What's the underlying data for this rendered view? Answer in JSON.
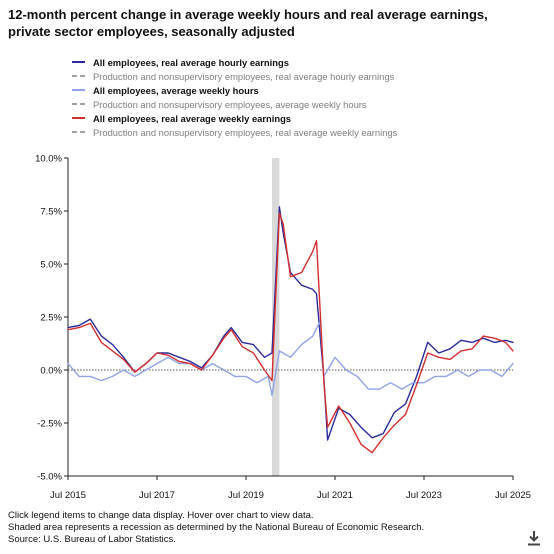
{
  "title": "12-month percent change in average weekly hours and real average earnings, private sector employees, seasonally adjusted",
  "legend": [
    {
      "label": "All employees, real average hourly earnings",
      "color": "#2b2b9b",
      "style": "solid",
      "emphasis": true
    },
    {
      "label": "Production and nonsupervisory employees, real average hourly earnings",
      "color": "#9e9e9e",
      "style": "dashed",
      "emphasis": false
    },
    {
      "label": "All employees, average weekly hours",
      "color": "#8fa3e6",
      "style": "solid",
      "emphasis": true
    },
    {
      "label": "Production and nonsupervisory employees, average weekly hours",
      "color": "#9e9e9e",
      "style": "dashed",
      "emphasis": false
    },
    {
      "label": "All employees, real average weekly earnings",
      "color": "#d32f2f",
      "style": "solid",
      "emphasis": true
    },
    {
      "label": "Production and nonsupervisory employees, real average weekly earnings",
      "color": "#9e9e9e",
      "style": "dashed",
      "emphasis": false
    }
  ],
  "footer": {
    "line1": "Click legend items to change data display. Hover over chart to view data.",
    "line2": "Shaded area represents a recession as determined by the National Bureau of Economic Research.",
    "line3": "Source: U.S. Bureau of Labor Statistics."
  },
  "download_icon": "download-icon",
  "chart_data": {
    "type": "line",
    "x_tick_labels": [
      "Jul 2015",
      "Jul 2017",
      "Jul 2019",
      "Jul 2021",
      "Jul 2023",
      "Jul 2025"
    ],
    "y_tick_labels": [
      "10.0%",
      "7.5%",
      "5.0%",
      "2.5%",
      "0.0%",
      "-2.5%",
      "-5.0%"
    ],
    "xlim": [
      "2015-07",
      "2025-07"
    ],
    "ylim": [
      -5.0,
      10.0
    ],
    "grid": false,
    "zero_line": "dotted",
    "recession_shading": {
      "start": "2020-02",
      "end": "2020-04",
      "color": "#d9d9d9"
    },
    "series": [
      {
        "name": "All employees, real average hourly earnings",
        "color": "#2b2b9b",
        "points": [
          [
            "2015-07",
            2.0
          ],
          [
            "2015-10",
            2.1
          ],
          [
            "2016-01",
            2.4
          ],
          [
            "2016-04",
            1.6
          ],
          [
            "2016-07",
            1.2
          ],
          [
            "2016-10",
            0.6
          ],
          [
            "2017-01",
            -0.1
          ],
          [
            "2017-04",
            0.3
          ],
          [
            "2017-07",
            0.8
          ],
          [
            "2017-10",
            0.8
          ],
          [
            "2018-01",
            0.6
          ],
          [
            "2018-04",
            0.4
          ],
          [
            "2018-07",
            0.1
          ],
          [
            "2018-10",
            0.7
          ],
          [
            "2019-01",
            1.6
          ],
          [
            "2019-03",
            2.0
          ],
          [
            "2019-06",
            1.3
          ],
          [
            "2019-09",
            1.2
          ],
          [
            "2019-12",
            0.6
          ],
          [
            "2020-02",
            0.8
          ],
          [
            "2020-04",
            7.7
          ],
          [
            "2020-05",
            6.5
          ],
          [
            "2020-07",
            4.6
          ],
          [
            "2020-10",
            4.0
          ],
          [
            "2021-01",
            3.8
          ],
          [
            "2021-02",
            3.6
          ],
          [
            "2021-04",
            -0.4
          ],
          [
            "2021-05",
            -3.3
          ],
          [
            "2021-08",
            -1.8
          ],
          [
            "2021-11",
            -2.1
          ],
          [
            "2022-02",
            -2.7
          ],
          [
            "2022-05",
            -3.2
          ],
          [
            "2022-08",
            -3.0
          ],
          [
            "2022-11",
            -2.0
          ],
          [
            "2023-02",
            -1.6
          ],
          [
            "2023-05",
            -0.3
          ],
          [
            "2023-08",
            1.3
          ],
          [
            "2023-11",
            0.8
          ],
          [
            "2024-02",
            1.0
          ],
          [
            "2024-05",
            1.4
          ],
          [
            "2024-08",
            1.3
          ],
          [
            "2024-11",
            1.5
          ],
          [
            "2025-02",
            1.3
          ],
          [
            "2025-05",
            1.4
          ],
          [
            "2025-07",
            1.3
          ]
        ]
      },
      {
        "name": "Production and nonsupervisory employees, real average hourly earnings",
        "color": "#9e9e9e",
        "dashed": true,
        "hidden": true,
        "points": []
      },
      {
        "name": "All employees, average weekly hours",
        "color": "#8fa3e6",
        "points": [
          [
            "2015-07",
            0.3
          ],
          [
            "2015-10",
            -0.3
          ],
          [
            "2016-01",
            -0.3
          ],
          [
            "2016-04",
            -0.5
          ],
          [
            "2016-07",
            -0.3
          ],
          [
            "2016-10",
            0.0
          ],
          [
            "2017-01",
            -0.3
          ],
          [
            "2017-04",
            0.0
          ],
          [
            "2017-07",
            0.3
          ],
          [
            "2017-10",
            0.6
          ],
          [
            "2018-01",
            0.3
          ],
          [
            "2018-04",
            0.3
          ],
          [
            "2018-07",
            0.0
          ],
          [
            "2018-10",
            0.3
          ],
          [
            "2019-01",
            0.0
          ],
          [
            "2019-04",
            -0.3
          ],
          [
            "2019-07",
            -0.3
          ],
          [
            "2019-10",
            -0.6
          ],
          [
            "2020-01",
            -0.3
          ],
          [
            "2020-02",
            -1.2
          ],
          [
            "2020-04",
            0.9
          ],
          [
            "2020-07",
            0.6
          ],
          [
            "2020-10",
            1.2
          ],
          [
            "2021-01",
            1.6
          ],
          [
            "2021-03",
            2.3
          ],
          [
            "2021-04",
            -0.3
          ],
          [
            "2021-07",
            0.6
          ],
          [
            "2021-10",
            0.0
          ],
          [
            "2022-01",
            -0.3
          ],
          [
            "2022-04",
            -0.9
          ],
          [
            "2022-07",
            -0.9
          ],
          [
            "2022-10",
            -0.6
          ],
          [
            "2023-01",
            -0.9
          ],
          [
            "2023-04",
            -0.6
          ],
          [
            "2023-07",
            -0.6
          ],
          [
            "2023-10",
            -0.3
          ],
          [
            "2024-01",
            -0.3
          ],
          [
            "2024-04",
            0.0
          ],
          [
            "2024-07",
            -0.3
          ],
          [
            "2024-10",
            0.0
          ],
          [
            "2025-01",
            0.0
          ],
          [
            "2025-04",
            -0.3
          ],
          [
            "2025-07",
            0.3
          ]
        ]
      },
      {
        "name": "Production and nonsupervisory employees, average weekly hours",
        "color": "#9e9e9e",
        "dashed": true,
        "hidden": true,
        "points": []
      },
      {
        "name": "All employees, real average weekly earnings",
        "color": "#d32f2f",
        "points": [
          [
            "2015-07",
            1.9
          ],
          [
            "2015-10",
            2.0
          ],
          [
            "2016-01",
            2.2
          ],
          [
            "2016-04",
            1.3
          ],
          [
            "2016-07",
            0.9
          ],
          [
            "2016-10",
            0.5
          ],
          [
            "2017-01",
            -0.1
          ],
          [
            "2017-04",
            0.3
          ],
          [
            "2017-07",
            0.8
          ],
          [
            "2017-10",
            0.7
          ],
          [
            "2018-01",
            0.4
          ],
          [
            "2018-04",
            0.3
          ],
          [
            "2018-07",
            0.0
          ],
          [
            "2018-10",
            0.7
          ],
          [
            "2019-01",
            1.5
          ],
          [
            "2019-03",
            1.9
          ],
          [
            "2019-06",
            1.1
          ],
          [
            "2019-09",
            0.8
          ],
          [
            "2019-12",
            0.0
          ],
          [
            "2020-02",
            -0.5
          ],
          [
            "2020-04",
            7.4
          ],
          [
            "2020-05",
            6.9
          ],
          [
            "2020-07",
            4.4
          ],
          [
            "2020-10",
            4.6
          ],
          [
            "2021-01",
            5.6
          ],
          [
            "2021-02",
            6.1
          ],
          [
            "2021-04",
            -0.6
          ],
          [
            "2021-05",
            -2.7
          ],
          [
            "2021-08",
            -1.7
          ],
          [
            "2021-11",
            -2.5
          ],
          [
            "2022-02",
            -3.5
          ],
          [
            "2022-05",
            -3.9
          ],
          [
            "2022-08",
            -3.2
          ],
          [
            "2022-11",
            -2.6
          ],
          [
            "2023-02",
            -2.1
          ],
          [
            "2023-05",
            -0.7
          ],
          [
            "2023-08",
            0.8
          ],
          [
            "2023-11",
            0.6
          ],
          [
            "2024-02",
            0.5
          ],
          [
            "2024-05",
            0.9
          ],
          [
            "2024-08",
            1.0
          ],
          [
            "2024-11",
            1.6
          ],
          [
            "2025-02",
            1.5
          ],
          [
            "2025-05",
            1.3
          ],
          [
            "2025-07",
            0.9
          ]
        ]
      },
      {
        "name": "Production and nonsupervisory employees, real average weekly earnings",
        "color": "#9e9e9e",
        "dashed": true,
        "hidden": true,
        "points": []
      }
    ]
  }
}
